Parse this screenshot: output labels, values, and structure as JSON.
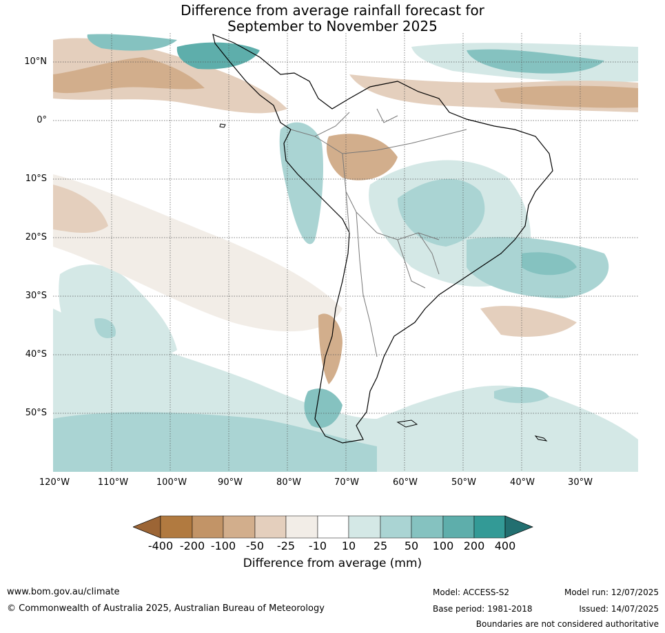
{
  "title": {
    "line1": "Difference from average rainfall forecast for",
    "line2": "September to November 2025"
  },
  "lat_labels": [
    "10°N",
    "0°",
    "10°S",
    "20°S",
    "30°S",
    "40°S",
    "50°S"
  ],
  "lon_labels": [
    "120°W",
    "110°W",
    "100°W",
    "90°W",
    "80°W",
    "70°W",
    "60°W",
    "50°W",
    "40°W",
    "30°W"
  ],
  "colorbar": {
    "label": "Difference from average (mm)",
    "ticks": [
      "-400",
      "-200",
      "-100",
      "-50",
      "-25",
      "-10",
      "10",
      "25",
      "50",
      "100",
      "200",
      "400"
    ],
    "colors": [
      "#9c6535",
      "#b17a40",
      "#c29467",
      "#d2ae8c",
      "#e4cfbd",
      "#f2ede7",
      "#ffffff",
      "#d4e8e6",
      "#aad4d3",
      "#85c2c0",
      "#5eaeab",
      "#339a96",
      "#226f70"
    ]
  },
  "footer": {
    "url": "www.bom.gov.au/climate",
    "copyright": "© Commonwealth of Australia 2025, Australian Bureau of Meteorology",
    "model": "Model: ACCESS-S2",
    "base_period": "Base period: 1981-2018",
    "model_run": "Model run: 12/07/2025",
    "issued": "Issued: 14/07/2025",
    "disclaimer": "Boundaries are not considered authoritative"
  }
}
